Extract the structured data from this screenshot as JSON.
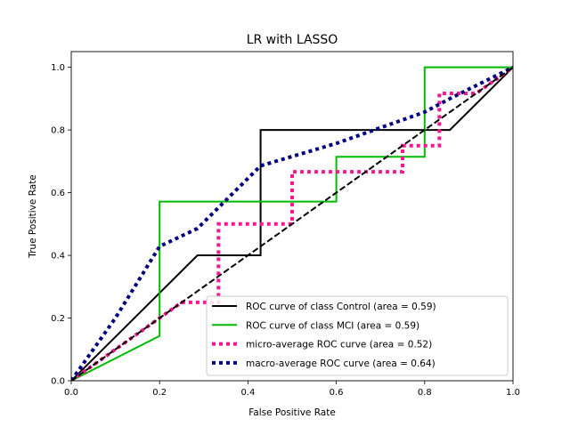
{
  "chart_data": {
    "type": "line",
    "title": "LR with LASSO",
    "xlabel": "False Positive Rate",
    "ylabel": "True Positive Rate",
    "xlim": [
      0.0,
      1.0
    ],
    "ylim": [
      0.0,
      1.05
    ],
    "xticks": [
      "0.0",
      "0.2",
      "0.4",
      "0.6",
      "0.8",
      "1.0"
    ],
    "yticks": [
      "0.0",
      "0.2",
      "0.4",
      "0.6",
      "0.8",
      "1.0"
    ],
    "grid": false,
    "legend_position": "lower-right",
    "series": [
      {
        "name": "ROC curve of class  Control (area = 0.59)",
        "color": "#000000",
        "style": "solid",
        "x": [
          0.0,
          0.0,
          0.2857,
          0.4286,
          0.4286,
          0.8571,
          1.0
        ],
        "y": [
          0.0,
          0.0,
          0.4,
          0.4,
          0.8,
          0.8,
          1.0
        ]
      },
      {
        "name": "ROC curve of class  MCI (area = 0.59)",
        "color": "#00bb00",
        "style": "solid",
        "x": [
          0.0,
          0.2,
          0.2,
          0.6,
          0.6,
          0.8,
          0.8,
          1.0
        ],
        "y": [
          0.0,
          0.1429,
          0.5714,
          0.5714,
          0.7143,
          0.7143,
          1.0,
          1.0
        ]
      },
      {
        "name": "micro-average ROC curve (area = 0.52)",
        "color": "#ff1493",
        "style": "dotted",
        "x": [
          0.0,
          0.1667,
          0.25,
          0.3333,
          0.3333,
          0.5,
          0.5,
          0.5833,
          0.75,
          0.75,
          0.8333,
          0.8333,
          0.9167,
          1.0
        ],
        "y": [
          0.0,
          0.1667,
          0.25,
          0.25,
          0.5,
          0.5,
          0.6667,
          0.6667,
          0.6667,
          0.75,
          0.75,
          0.9167,
          0.9167,
          1.0
        ]
      },
      {
        "name": "macro-average ROC curve (area = 0.64)",
        "color": "#000080",
        "style": "dotted",
        "x": [
          0.0,
          0.1,
          0.2,
          0.2857,
          0.4286,
          0.6,
          0.8,
          0.8571,
          1.0
        ],
        "y": [
          0.0,
          0.2,
          0.4286,
          0.4857,
          0.6857,
          0.7571,
          0.8571,
          0.9,
          1.0
        ]
      }
    ],
    "reference_line": {
      "color": "#000000",
      "style": "dashed",
      "x": [
        0.0,
        1.0
      ],
      "y": [
        0.0,
        1.0
      ]
    }
  }
}
